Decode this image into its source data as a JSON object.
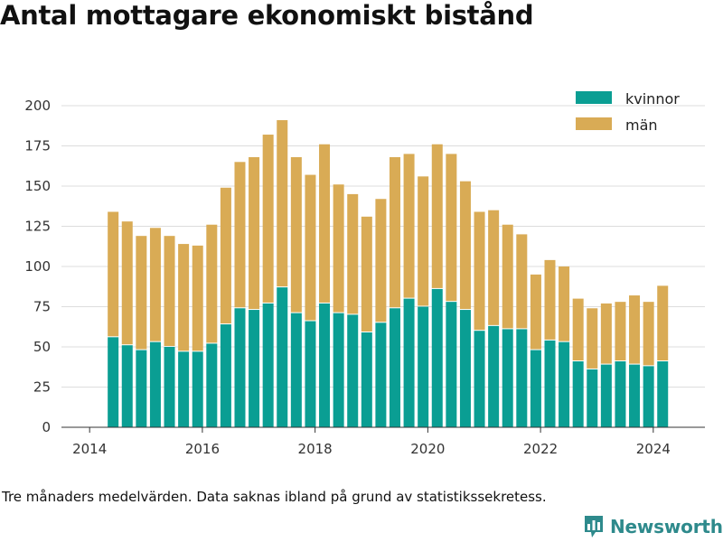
{
  "title": "Antal mottagare ekonomiskt bistånd",
  "footnote": "Tre månaders medelvärden. Data saknas ibland på grund av statistikssekretess.",
  "brand": {
    "name": "Newsworthy",
    "icon": "bar-chart-logo-icon"
  },
  "colors": {
    "kvinnor": "#0a9e93",
    "man": "#d9ab55",
    "grid": "#dddddd",
    "axis": "#333333",
    "brand": "#2e8a8c"
  },
  "chart_data": {
    "type": "bar",
    "stacked": true,
    "title": "Antal mottagare ekonomiskt bistånd",
    "xlabel": "",
    "ylabel": "",
    "ylim": [
      0,
      200
    ],
    "xlim": [
      "2013-07",
      "2024-12"
    ],
    "y_ticks": [
      "0",
      "25",
      "50",
      "75",
      "100",
      "125",
      "150",
      "175",
      "200"
    ],
    "x_ticks": [
      "2014",
      "2016",
      "2018",
      "2020",
      "2022",
      "2024"
    ],
    "grid": true,
    "legend_position": "top-right",
    "x": [
      "2014-06",
      "2014-09",
      "2014-12",
      "2015-03",
      "2015-06",
      "2015-09",
      "2015-12",
      "2016-03",
      "2016-06",
      "2016-09",
      "2016-12",
      "2017-03",
      "2017-06",
      "2017-09",
      "2017-12",
      "2018-03",
      "2018-06",
      "2018-09",
      "2018-12",
      "2019-03",
      "2019-06",
      "2019-09",
      "2019-12",
      "2020-03",
      "2020-06",
      "2020-09",
      "2020-12",
      "2021-03",
      "2021-06",
      "2021-09",
      "2021-12",
      "2022-03",
      "2022-06",
      "2022-09",
      "2022-12",
      "2023-03",
      "2023-06",
      "2023-09",
      "2023-12",
      "2024-03"
    ],
    "series": [
      {
        "name": "kvinnor",
        "color": "#0a9e93",
        "values": [
          56,
          51,
          48,
          53,
          50,
          47,
          47,
          52,
          64,
          74,
          73,
          77,
          87,
          71,
          66,
          77,
          71,
          70,
          59,
          65,
          74,
          80,
          75,
          86,
          78,
          73,
          60,
          63,
          61,
          61,
          48,
          54,
          53,
          41,
          36,
          39,
          41,
          39,
          38,
          41
        ]
      },
      {
        "name": "män",
        "color": "#d9ab55",
        "values": [
          78,
          77,
          71,
          71,
          69,
          67,
          66,
          74,
          85,
          91,
          95,
          105,
          104,
          97,
          91,
          99,
          80,
          75,
          72,
          77,
          94,
          90,
          81,
          90,
          92,
          80,
          74,
          72,
          65,
          59,
          47,
          50,
          47,
          39,
          38,
          38,
          37,
          43,
          40,
          47
        ]
      }
    ]
  }
}
